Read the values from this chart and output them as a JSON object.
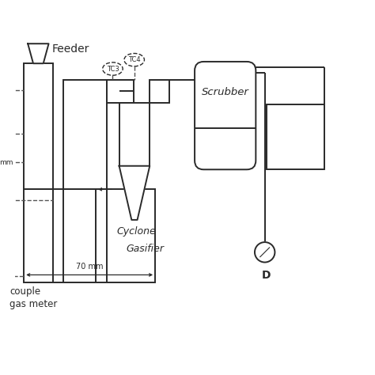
{
  "bg_color": "#ffffff",
  "lc": "#2a2a2a",
  "dc": "#555555",
  "lw": 1.4,
  "fs": 9,
  "labels": {
    "feeder": "Feeder",
    "cyclone": "Cyclone",
    "scrubber": "Scrubber",
    "gasifier": "Gasifier",
    "tc3": "TC3",
    "tc4": "TC4",
    "dim": "70 mm",
    "couple": "couple",
    "gas_meter": "gas meter",
    "D": "D",
    "mm": "mm"
  },
  "xlim": [
    0,
    10
  ],
  "ylim": [
    0,
    10
  ]
}
